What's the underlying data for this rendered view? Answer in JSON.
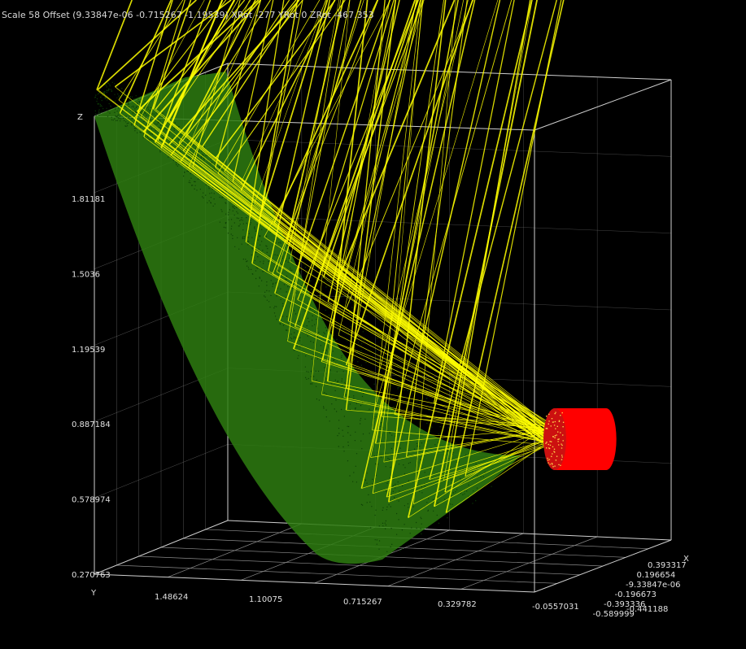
{
  "status": {
    "text": "Scale 58 Offset (9.33847e-06 -0.715267 -1.19539) XRot -277 YRot 0 ZRot -467.353"
  },
  "colors": {
    "background": "#000000",
    "box": "#cfcfcf",
    "grid": "#8a8a8a",
    "mirror": "#2e7d10",
    "rays": "#ffff00",
    "receiver": "#ff0000"
  },
  "chart_data": {
    "type": "scatter",
    "title": "",
    "axes": {
      "x": {
        "label": "X",
        "ticks": [
          "0.393317",
          "0.196654",
          "-9.33847e-06",
          "-0.196673",
          "-0.393336",
          "-0.589999"
        ]
      },
      "y": {
        "label": "Y",
        "ticks": [
          "1.48624",
          "1.10075",
          "0.715267",
          "0.329782",
          "-0.0557031",
          "-0.441188"
        ]
      },
      "z": {
        "label": "Z",
        "ticks": [
          "0.270763",
          "0.578974",
          "0.887184",
          "1.19539",
          "1.5036",
          "1.81181"
        ]
      }
    },
    "series": [
      {
        "kind": "parabolic mirror surface (point cloud)",
        "color": "#2e7d10"
      },
      {
        "kind": "incident and reflected rays",
        "color": "#ffff00"
      },
      {
        "kind": "cylindrical receiver (point cloud)",
        "color": "#ff0000"
      }
    ]
  }
}
